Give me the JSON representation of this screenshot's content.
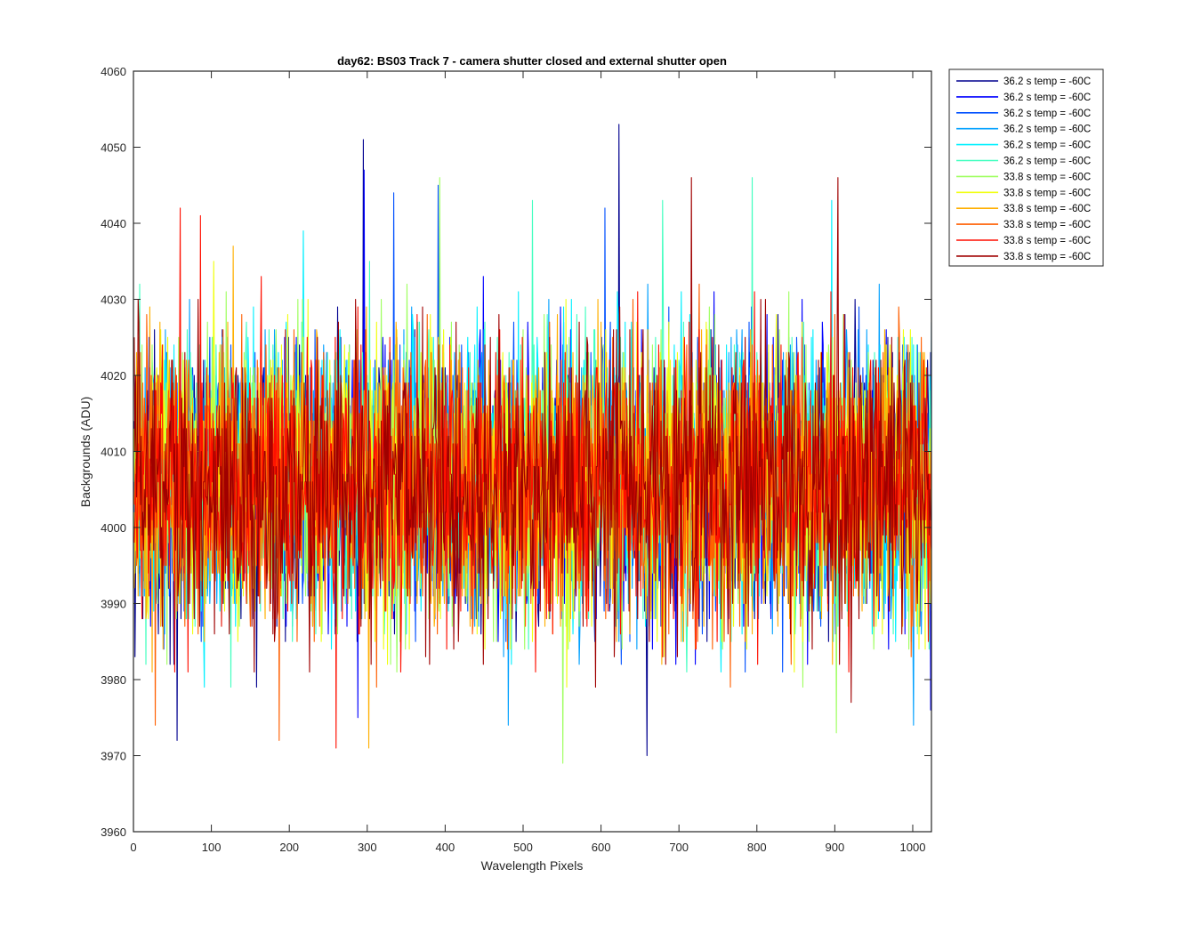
{
  "chart_data": {
    "type": "line",
    "title": "day62: BS03  Track 7 - camera shutter closed and external shutter open",
    "xlabel": "Wavelength Pixels",
    "ylabel": "Backgrounds (ADU)",
    "xlim": [
      0,
      1024
    ],
    "ylim": [
      3960,
      4060
    ],
    "xticks": [
      0,
      100,
      200,
      300,
      400,
      500,
      600,
      700,
      800,
      900,
      1000
    ],
    "yticks": [
      3960,
      3970,
      3980,
      3990,
      4000,
      4010,
      4020,
      4030,
      4040,
      4050,
      4060
    ],
    "grid": false,
    "legend_position": "outside-top-right",
    "noise_description": "Each series is ~1024 points fluctuating roughly between 3975 and 4035 ADU around a mean near 4006",
    "series": [
      {
        "name": "36.2 s temp = -60C",
        "color": "#00008f",
        "mean": 4006,
        "spread": 13,
        "spikes": [
          [
            294,
            4051
          ],
          [
            622,
            4053
          ],
          [
            658,
            3970
          ],
          [
            55,
            3972
          ]
        ]
      },
      {
        "name": "36.2 s temp = -60C",
        "color": "#0000ff",
        "mean": 4006,
        "spread": 13,
        "spikes": [
          [
            295,
            4047
          ],
          [
            287,
            3975
          ],
          [
            1022,
            3976
          ]
        ]
      },
      {
        "name": "36.2 s temp = -60C",
        "color": "#0050ff",
        "mean": 4006,
        "spread": 13,
        "spikes": [
          [
            333,
            4044
          ],
          [
            390,
            4045
          ],
          [
            604,
            4042
          ]
        ]
      },
      {
        "name": "36.2 s temp = -60C",
        "color": "#00a0ff",
        "mean": 4006,
        "spread": 13,
        "spikes": [
          [
            480,
            3974
          ],
          [
            1000,
            3974
          ]
        ]
      },
      {
        "name": "36.2 s temp = -60C",
        "color": "#00f0ff",
        "mean": 4006,
        "spread": 13,
        "spikes": [
          [
            217,
            4039
          ],
          [
            895,
            4043
          ]
        ]
      },
      {
        "name": "36.2 s temp = -60C",
        "color": "#40ffbf",
        "mean": 4006,
        "spread": 13,
        "spikes": [
          [
            511,
            4043
          ],
          [
            678,
            4043
          ],
          [
            793,
            4046
          ]
        ]
      },
      {
        "name": "33.8 s temp = -60C",
        "color": "#9fff60",
        "mean": 4006,
        "spread": 13,
        "spikes": [
          [
            392,
            4046
          ],
          [
            550,
            3969
          ],
          [
            901,
            3973
          ]
        ]
      },
      {
        "name": "33.8 s temp = -60C",
        "color": "#f0ff0f",
        "mean": 4006,
        "spread": 13,
        "spikes": [
          [
            555,
            3979
          ]
        ]
      },
      {
        "name": "33.8 s temp = -60C",
        "color": "#ffaf00",
        "mean": 4006,
        "spread": 13,
        "spikes": [
          [
            301,
            3971
          ],
          [
            20,
            4029
          ],
          [
            127,
            4037
          ]
        ]
      },
      {
        "name": "33.8 s temp = -60C",
        "color": "#ff5f00",
        "mean": 4006,
        "spread": 13,
        "spikes": [
          [
            186,
            3972
          ],
          [
            27,
            3974
          ]
        ]
      },
      {
        "name": "33.8 s temp = -60C",
        "color": "#ff0f00",
        "mean": 4006,
        "spread": 13,
        "spikes": [
          [
            59,
            4042
          ],
          [
            85,
            4041
          ],
          [
            259,
            3971
          ]
        ]
      },
      {
        "name": "33.8 s temp = -60C",
        "color": "#a00000",
        "mean": 4006,
        "spread": 13,
        "spikes": [
          [
            715,
            4046
          ],
          [
            903,
            4046
          ],
          [
            920,
            3977
          ]
        ]
      }
    ]
  }
}
